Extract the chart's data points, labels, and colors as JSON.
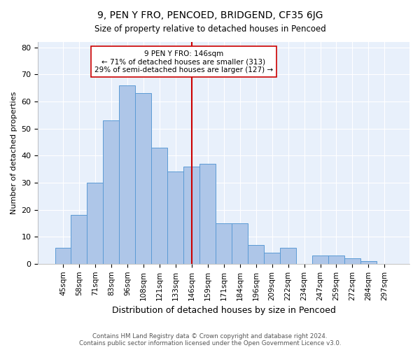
{
  "title": "9, PEN Y FRO, PENCOED, BRIDGEND, CF35 6JG",
  "subtitle": "Size of property relative to detached houses in Pencoed",
  "xlabel": "Distribution of detached houses by size in Pencoed",
  "ylabel": "Number of detached properties",
  "categories": [
    "45sqm",
    "58sqm",
    "71sqm",
    "83sqm",
    "96sqm",
    "108sqm",
    "121sqm",
    "133sqm",
    "146sqm",
    "159sqm",
    "171sqm",
    "184sqm",
    "196sqm",
    "209sqm",
    "222sqm",
    "234sqm",
    "247sqm",
    "259sqm",
    "272sqm",
    "284sqm",
    "297sqm"
  ],
  "values": [
    6,
    18,
    30,
    53,
    66,
    63,
    43,
    34,
    36,
    37,
    15,
    15,
    7,
    4,
    6,
    0,
    3,
    3,
    2,
    1,
    0
  ],
  "bar_color": "#aec6e8",
  "bar_edge_color": "#5b9bd5",
  "highlight_index": 8,
  "highlight_color": "#cc0000",
  "annotation_text": "9 PEN Y FRO: 146sqm\n← 71% of detached houses are smaller (313)\n29% of semi-detached houses are larger (127) →",
  "annotation_box_color": "#ffffff",
  "annotation_box_edge_color": "#cc0000",
  "ylim": [
    0,
    82
  ],
  "yticks": [
    0,
    10,
    20,
    30,
    40,
    50,
    60,
    70,
    80
  ],
  "background_color": "#e8f0fb",
  "footer_line1": "Contains HM Land Registry data © Crown copyright and database right 2024.",
  "footer_line2": "Contains public sector information licensed under the Open Government Licence v3.0."
}
